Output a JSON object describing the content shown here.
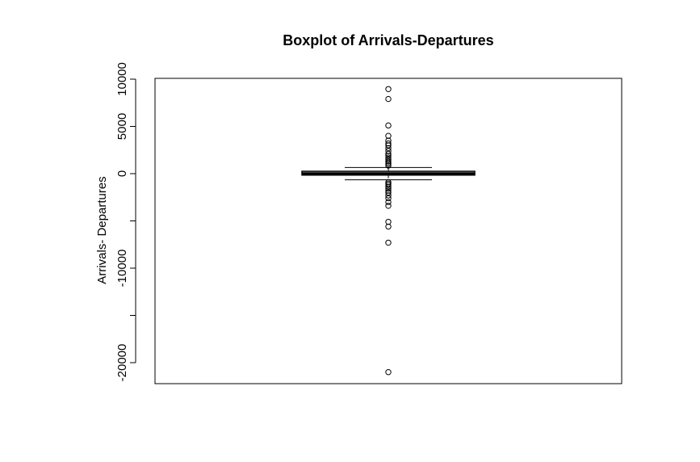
{
  "chart_data": {
    "type": "boxplot",
    "title": "Boxplot of Arrivals-Departures",
    "xlabel": "",
    "ylabel": "Arrivals- Departures",
    "ylim": [
      -22300,
      10000
    ],
    "y_ticks": [
      -20000,
      -15000,
      -10000,
      -5000,
      0,
      5000,
      10000
    ],
    "y_tick_labels": [
      "-20000",
      "",
      "-10000",
      "",
      "0",
      "5000",
      "10000"
    ],
    "grid": false,
    "legend": "none",
    "box": {
      "min_whisker": -650,
      "q1": -150,
      "median": 0,
      "q3": 250,
      "max_whisker": 650
    },
    "outliers": [
      8950,
      7900,
      5100,
      4000,
      3500,
      3200,
      3000,
      2700,
      2400,
      2100,
      1900,
      1700,
      1500,
      1300,
      1150,
      1000,
      850,
      -900,
      -1050,
      -1200,
      -1400,
      -1600,
      -1800,
      -2000,
      -2300,
      -2600,
      -3000,
      -3400,
      -5100,
      -5600,
      -7300,
      -21000
    ],
    "colors": {
      "box": "#000000",
      "median": "#000000",
      "points": "#000000"
    }
  }
}
